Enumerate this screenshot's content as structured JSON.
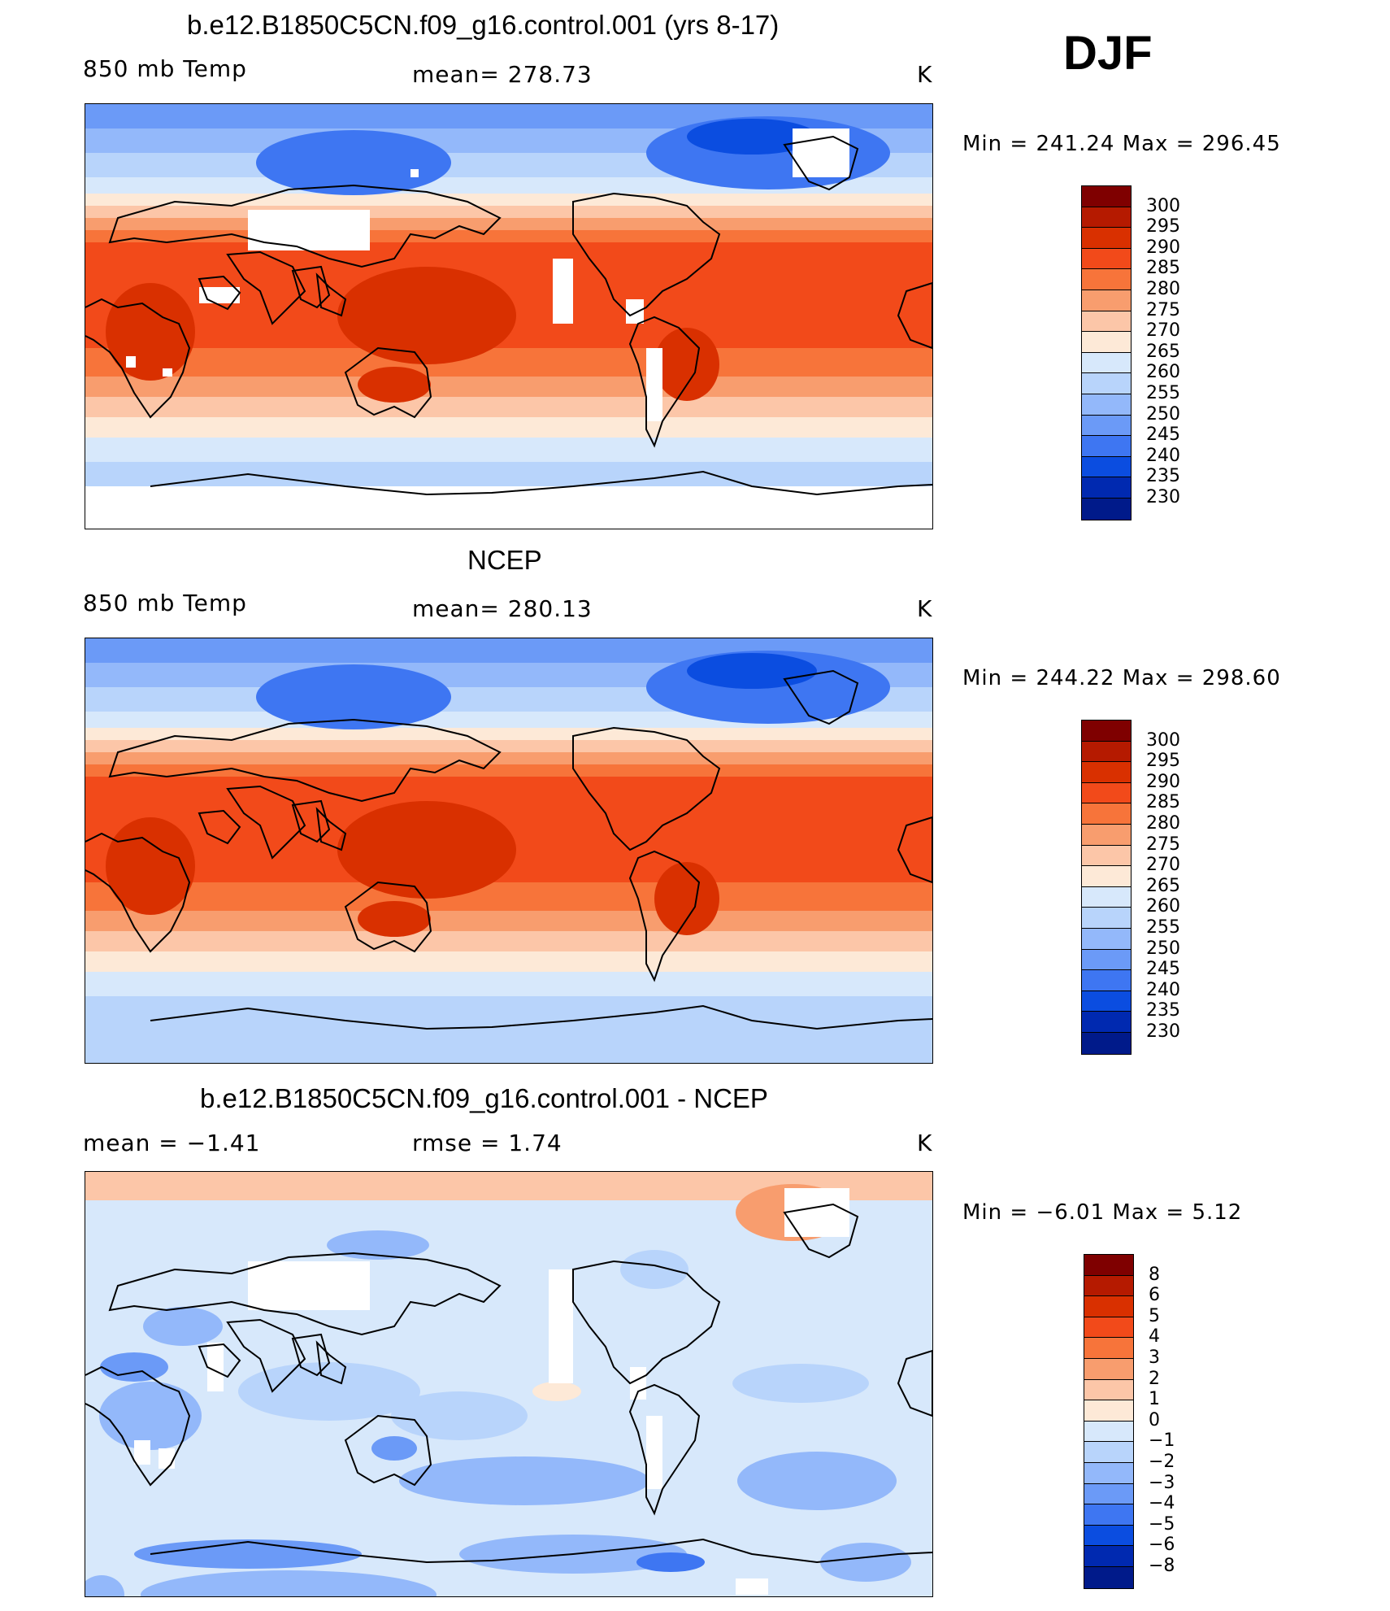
{
  "season": "DJF",
  "panels": [
    {
      "title": "b.e12.B1850C5CN.f09_g16.control.001 (yrs 8-17)",
      "variable": "850 mb Temp",
      "stat_text": "mean=  278.73",
      "units": "K",
      "minmax": "Min  =  241.24  Max  =  296.45",
      "map_style": "model"
    },
    {
      "title": "NCEP",
      "variable": "850 mb Temp",
      "stat_text": "mean=  280.13",
      "units": "K",
      "minmax": "Min  =  244.22  Max  =  298.60",
      "map_style": "obs"
    },
    {
      "title": "b.e12.B1850C5CN.f09_g16.control.001 - NCEP",
      "variable": "mean  =    −1.41",
      "stat_text": "rmse  =     1.74",
      "units": "K",
      "minmax": "Min  =    −6.01  Max  =     5.12",
      "map_style": "diff"
    }
  ],
  "colorbars": {
    "temperature": {
      "levels": [
        "300",
        "295",
        "290",
        "285",
        "280",
        "275",
        "270",
        "265",
        "260",
        "255",
        "250",
        "245",
        "240",
        "235",
        "230"
      ],
      "colors": [
        "#7f0000",
        "#b51a00",
        "#d93000",
        "#f24a1a",
        "#f7743a",
        "#f89d6e",
        "#fcc6a8",
        "#fde9d7",
        "#d7e8fb",
        "#b8d4fb",
        "#93b8fa",
        "#6b9af7",
        "#3e76f2",
        "#0b4de0",
        "#0029b0",
        "#001a8a"
      ]
    },
    "difference": {
      "levels": [
        "8",
        "6",
        "5",
        "4",
        "3",
        "2",
        "1",
        "0",
        "−1",
        "−2",
        "−3",
        "−4",
        "−5",
        "−6",
        "−8"
      ],
      "colors": [
        "#7f0000",
        "#b51a00",
        "#d93000",
        "#f24a1a",
        "#f7743a",
        "#f89d6e",
        "#fcc6a8",
        "#fde9d7",
        "#d7e8fb",
        "#b8d4fb",
        "#93b8fa",
        "#6b9af7",
        "#3e76f2",
        "#0b4de0",
        "#0029b0",
        "#001a8a"
      ]
    }
  }
}
